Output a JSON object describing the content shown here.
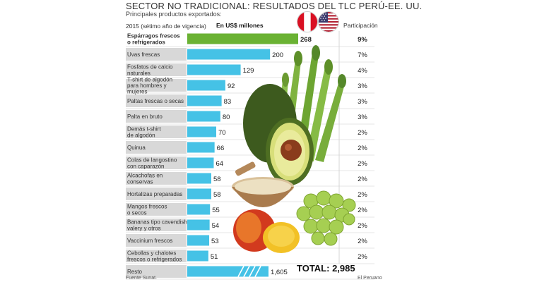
{
  "header": {
    "title": "SECTOR NO TRADICIONAL: RESULTADOS DEL TLC PERÚ-EE. UU.",
    "subtitle": "Principales productos exportados:",
    "note": "2015 (sétimo año de vigencia)",
    "unit": "En US$ millones",
    "share_header": "Participación"
  },
  "total": {
    "label": "TOTAL: 2,985"
  },
  "footer": {
    "source": "Fuente Sunat.",
    "credit": "El Peruano"
  },
  "colors": {
    "highlight": "#6ab233",
    "bar": "#45c2e6",
    "label_bg": "#d8d8d8"
  },
  "chart_data": {
    "type": "bar",
    "orientation": "horizontal",
    "title": "SECTOR NO TRADICIONAL: RESULTADOS DEL TLC PERÚ-EE. UU.",
    "unit": "En US$ millones",
    "categories": [
      "Espárragos frescos o refrigerados",
      "Uvas frescas",
      "Fosfatos de calcio naturales",
      "T-shirt de algodón para hombres y mujeres",
      "Paltas frescas o secas",
      "Palta en bruto",
      "Demás t-shirt de algodón",
      "Quinua",
      "Colas de langostino con caparazón",
      "Alcachofas en conservas",
      "Hortalizas preparadas",
      "Mangos frescos o secos",
      "Bananas tipo cavendish valery y otros",
      "Vaccinium frescos",
      "Cebollas y chalotes frescos o refrigerados",
      "Resto"
    ],
    "category_lines": [
      [
        "Espárragos frescos",
        "o refrigerados"
      ],
      [
        "Uvas frescas"
      ],
      [
        "Fosfatos de calcio",
        "naturales"
      ],
      [
        "T-shirt  de algodón",
        "para hombres y",
        "mujeres"
      ],
      [
        "Paltas frescas o secas"
      ],
      [
        "Palta en bruto"
      ],
      [
        "Demás t-shirt",
        "de algodón"
      ],
      [
        "Quinua"
      ],
      [
        "Colas de langostino",
        "con caparazón"
      ],
      [
        "Alcachofas en",
        "conservas"
      ],
      [
        "Hortalizas preparadas"
      ],
      [
        "Mangos frescos",
        "o secos"
      ],
      [
        "Bananas tipo cavendish",
        "valery  y otros"
      ],
      [
        "Vaccinium frescos"
      ],
      [
        "Cebollas y chalotes",
        "frescos o refrigerados"
      ],
      [
        "Resto"
      ]
    ],
    "values": [
      268,
      200,
      129,
      92,
      83,
      80,
      70,
      66,
      64,
      58,
      58,
      55,
      54,
      53,
      51,
      1605
    ],
    "value_labels": [
      "268",
      "200",
      "129",
      "92",
      "83",
      "80",
      "70",
      "66",
      "64",
      "58",
      "58",
      "55",
      "54",
      "53",
      "51",
      "1,605"
    ],
    "shares": [
      "9%",
      "7%",
      "4%",
      "3%",
      "3%",
      "3%",
      "2%",
      "2%",
      "2%",
      "2%",
      "2%",
      "2%",
      "2%",
      "2%",
      "2%"
    ],
    "highlight_index": 0,
    "total_value": 2985
  }
}
